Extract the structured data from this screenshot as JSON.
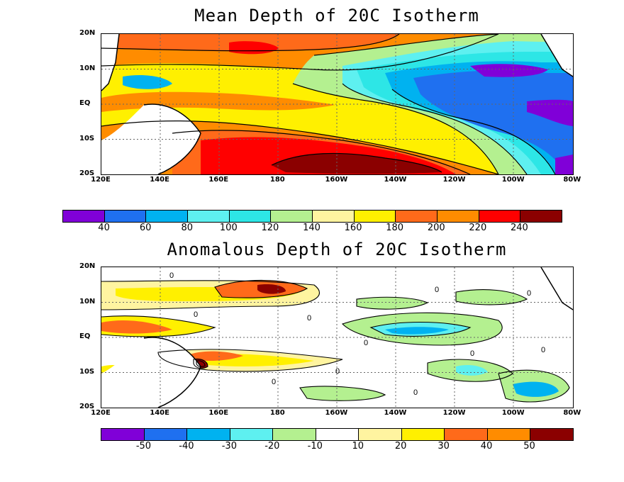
{
  "map1": {
    "title": "Mean Depth of 20C Isotherm",
    "lat_labels": [
      "20N",
      "10N",
      "EQ",
      "10S",
      "20S"
    ],
    "lon_labels": [
      "120E",
      "140E",
      "160E",
      "180",
      "160W",
      "140W",
      "120W",
      "100W",
      "80W"
    ],
    "colorbar": {
      "colors": [
        "#8000d8",
        "#1f70f0",
        "#00b2f0",
        "#5ef0f0",
        "#2de6e6",
        "#b4f090",
        "#fff4a0",
        "#fff000",
        "#ff6a1a",
        "#ff8c00",
        "#ff0000",
        "#8b0000"
      ],
      "labels": [
        "40",
        "60",
        "80",
        "100",
        "120",
        "140",
        "160",
        "180",
        "200",
        "220",
        "240"
      ]
    }
  },
  "map2": {
    "title": "Anomalous Depth of 20C Isotherm",
    "lat_labels": [
      "20N",
      "10N",
      "EQ",
      "10S",
      "20S"
    ],
    "lon_labels": [
      "120E",
      "140E",
      "160E",
      "180",
      "160W",
      "140W",
      "120W",
      "100W",
      "80W"
    ],
    "contour_labels": [
      "0",
      "0",
      "0",
      "0",
      "0",
      "0",
      "0",
      "0",
      "0",
      "0",
      "0"
    ],
    "colorbar": {
      "colors": [
        "#8000d8",
        "#1f70f0",
        "#00b2f0",
        "#5ef0f0",
        "#b4f090",
        "#ffffff",
        "#fff4a0",
        "#fff000",
        "#ff6a1a",
        "#ff8c00",
        "#8b0000"
      ],
      "labels": [
        "-50",
        "-40",
        "-30",
        "-20",
        "-10",
        "10",
        "20",
        "30",
        "40",
        "50"
      ]
    }
  }
}
